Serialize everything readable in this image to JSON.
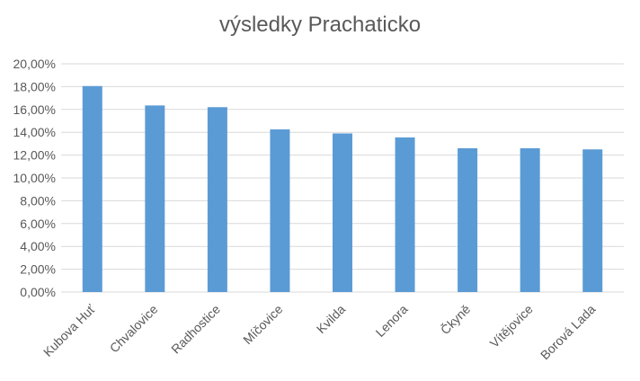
{
  "chart_data": {
    "type": "bar",
    "title": "výsledky Prachaticko",
    "categories": [
      "Kubova Huť",
      "Chvalovice",
      "Radhostice",
      "Míčovice",
      "Kvilda",
      "Lenora",
      "Čkyně",
      "Vítějovice",
      "Borová Lada"
    ],
    "values": [
      18.05,
      16.35,
      16.2,
      14.25,
      13.9,
      13.55,
      12.6,
      12.6,
      12.5
    ],
    "ylim": [
      0,
      20
    ],
    "ytick_labels": [
      "0,00%",
      "2,00%",
      "4,00%",
      "6,00%",
      "8,00%",
      "10,00%",
      "12,00%",
      "14,00%",
      "16,00%",
      "18,00%",
      "20,00%"
    ],
    "xlabel": "",
    "ylabel": "",
    "grid": true,
    "legend": "none",
    "bar_color": "#5B9BD5",
    "grid_color": "#D9D9D9",
    "text_color": "#595959"
  }
}
